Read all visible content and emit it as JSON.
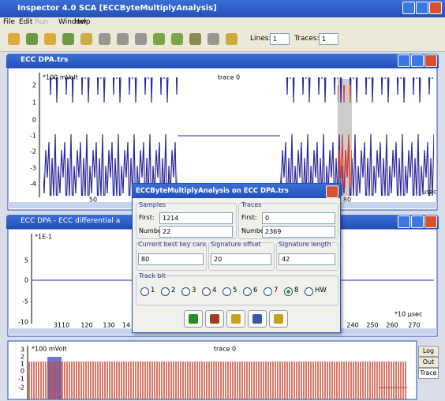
{
  "app": {
    "title": "Inspector 4.0 SCA [ECCByteMultiplyAnalysis]",
    "menu": [
      "File",
      "Edit",
      "Run",
      "Window",
      "Help"
    ],
    "toolbar": {
      "lines_label": "Lines:",
      "lines_value": "1",
      "traces_label": "Traces:",
      "traces_value": "1"
    }
  },
  "windows": [
    {
      "title": "ECC DPA.trs",
      "plot_title": "trace 0",
      "y_unit": "*100 mVolt",
      "yticks": [
        "2",
        "1",
        "0",
        "-1",
        "-2",
        "-3",
        "-4"
      ],
      "xticks": [
        "50",
        "80"
      ],
      "x_unit": "µsec"
    },
    {
      "title": "ECC DPA - ECC differential a",
      "y_unit": "*1E-1",
      "yticks": [
        "5",
        "0",
        "-5",
        "-10"
      ],
      "xticks": [
        "3110",
        "120",
        "130",
        "14",
        "240",
        "250",
        "260",
        "270"
      ],
      "x_unit": "*10 µsec"
    },
    {
      "plot_title": "trace 0",
      "y_unit": "*100 mVolt",
      "yticks": [
        "3",
        "2",
        "1",
        "0",
        "-1",
        "-2"
      ],
      "tabs": [
        "Log",
        "Out",
        "Trace"
      ]
    }
  ],
  "dialog": {
    "title": "ECCByteMultiplyAnalysis on ECC DPA.trs",
    "samples": {
      "label": "Samples",
      "first_label": "First:",
      "first": "1214",
      "number_label": "Number:",
      "number": "22"
    },
    "traces": {
      "label": "Traces",
      "first_label": "First:",
      "first": "0",
      "number_label": "Number:",
      "number": "2369"
    },
    "fields": [
      {
        "label": "Current best key candid",
        "value": "80"
      },
      {
        "label": "Signature offset",
        "value": "20"
      },
      {
        "label": "Signature length",
        "value": "42"
      }
    ],
    "track_bit": {
      "label": "Track bit",
      "options": [
        "1",
        "2",
        "3",
        "4",
        "5",
        "6",
        "7",
        "8",
        "HW"
      ],
      "selected": "8"
    }
  }
}
